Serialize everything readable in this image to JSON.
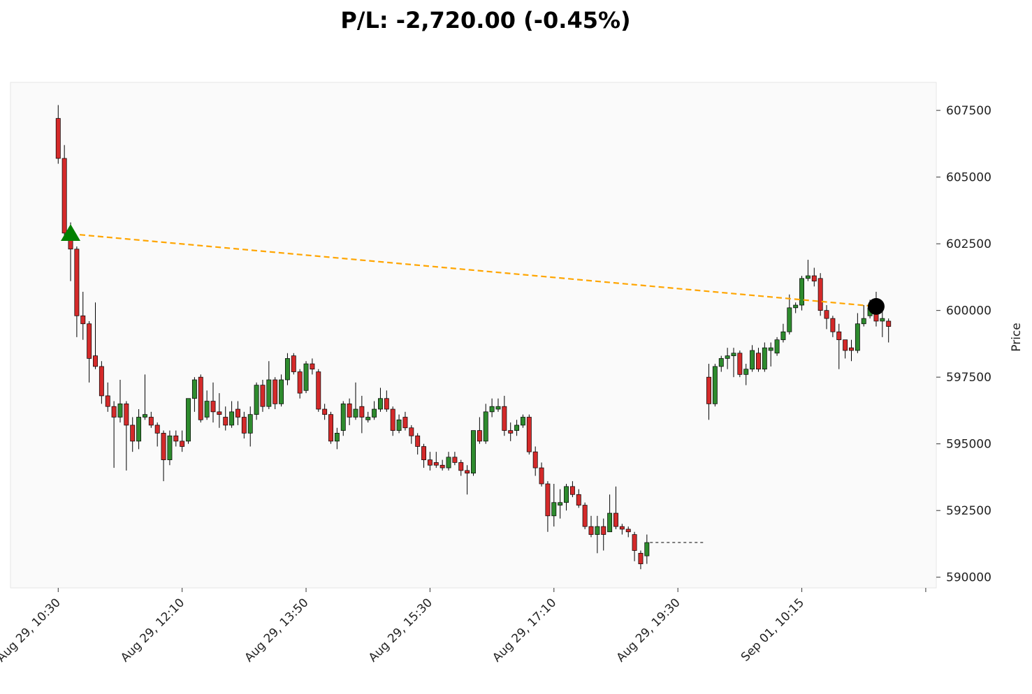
{
  "chart_data": {
    "type": "candlestick",
    "title": "P/L: -2,720.00 (-0.45%)",
    "ylabel": "Price",
    "ylim": [
      589600,
      608550
    ],
    "yticks": [
      590000,
      592500,
      595000,
      597500,
      600000,
      602500,
      605000,
      607500
    ],
    "xlim": [
      -7.7,
      141.7
    ],
    "xticks": [
      {
        "value": 0,
        "label": "Aug 29, 10:30"
      },
      {
        "value": 20,
        "label": "Aug 29, 12:10"
      },
      {
        "value": 40,
        "label": "Aug 29, 13:50"
      },
      {
        "value": 60,
        "label": "Aug 29, 15:30"
      },
      {
        "value": 80,
        "label": "Aug 29, 17:10"
      },
      {
        "value": 100,
        "label": "Aug 29, 19:30"
      },
      {
        "value": 120,
        "label": "Sep 01, 10:15"
      },
      {
        "value": 140,
        "label": null
      }
    ],
    "up_color": "#2e8b2e",
    "down_color": "#d42a2a",
    "wick_color": "#000000",
    "open": [
      607200,
      605700,
      602900,
      602300,
      599800,
      599500,
      598300,
      597900,
      596800,
      596400,
      596000,
      596500,
      595700,
      595100,
      596000,
      596000,
      595700,
      595400,
      594400,
      595300,
      595100,
      595100,
      596700,
      597500,
      596000,
      596600,
      596200,
      596000,
      595700,
      596300,
      596000,
      595400,
      596100,
      597200,
      596400,
      597400,
      596500,
      597400,
      598300,
      597700,
      597000,
      598000,
      597700,
      596300,
      596100,
      595100,
      595500,
      596500,
      596000,
      596400,
      595900,
      596000,
      596300,
      596700,
      596300,
      595500,
      596000,
      595600,
      595300,
      594900,
      594400,
      594300,
      594200,
      594100,
      594500,
      594300,
      594000,
      593900,
      595500,
      595100,
      596200,
      596300,
      596400,
      595500,
      595500,
      595700,
      596000,
      594700,
      594100,
      593500,
      592300,
      592700,
      592800,
      593400,
      593100,
      592700,
      591900,
      591600,
      591900,
      591700,
      592400,
      591900,
      591800,
      591600,
      590900,
      590800,
      null,
      null,
      null,
      null,
      null,
      null,
      null,
      null,
      null,
      597500,
      596500,
      597900,
      598200,
      598300,
      598400,
      597600,
      597800,
      598400,
      597800,
      598500,
      598400,
      598900,
      599200,
      600100,
      600200,
      601200,
      601300,
      601200,
      600000,
      599700,
      599200,
      598900,
      598600,
      598500,
      599500,
      599800,
      600100,
      599600,
      599600
    ],
    "high": [
      607700,
      606200,
      603300,
      602400,
      600700,
      599600,
      600300,
      598100,
      597300,
      596600,
      597400,
      596600,
      596000,
      596300,
      597600,
      596200,
      595800,
      595500,
      595500,
      595500,
      595500,
      596700,
      597500,
      597600,
      597000,
      597300,
      596900,
      596400,
      596600,
      596600,
      596200,
      596400,
      597300,
      597400,
      598100,
      597500,
      597600,
      598400,
      598400,
      597800,
      598100,
      598200,
      597800,
      596500,
      596200,
      595600,
      596600,
      596700,
      597300,
      596800,
      596200,
      596600,
      597100,
      597000,
      596400,
      596100,
      596200,
      595700,
      595400,
      595000,
      594700,
      594700,
      594400,
      594700,
      594700,
      594400,
      594200,
      595500,
      596000,
      596500,
      596700,
      596700,
      596800,
      595800,
      595900,
      596100,
      596100,
      594900,
      594300,
      593600,
      593500,
      593300,
      593500,
      593600,
      593300,
      592800,
      592300,
      592300,
      592200,
      593100,
      593400,
      592000,
      591900,
      591700,
      591000,
      591600,
      null,
      null,
      null,
      null,
      null,
      null,
      null,
      null,
      null,
      598000,
      598000,
      598300,
      598600,
      598600,
      598500,
      598000,
      598700,
      598600,
      598800,
      598800,
      599000,
      599500,
      600600,
      600300,
      601300,
      601900,
      601600,
      601400,
      600200,
      599800,
      599500,
      598900,
      598900,
      599900,
      600200,
      600400,
      600700,
      600100,
      599700
    ],
    "low": [
      605500,
      602700,
      601100,
      599000,
      598900,
      597300,
      597800,
      596500,
      596200,
      594100,
      595800,
      594000,
      594700,
      594800,
      595900,
      595600,
      594900,
      593600,
      594200,
      594900,
      594700,
      595000,
      596200,
      595800,
      595900,
      595800,
      595600,
      595500,
      595600,
      595700,
      595200,
      594900,
      595900,
      596200,
      596300,
      596300,
      596400,
      597200,
      597600,
      596700,
      596900,
      597600,
      596200,
      595900,
      595000,
      594800,
      595300,
      595700,
      595900,
      595400,
      595800,
      595900,
      596200,
      596200,
      595300,
      595400,
      595500,
      595000,
      594600,
      594100,
      594000,
      594100,
      594000,
      594000,
      594200,
      593800,
      593100,
      593800,
      595000,
      595000,
      596000,
      596200,
      595300,
      595100,
      595300,
      595600,
      594600,
      593800,
      593400,
      591700,
      591900,
      592200,
      592500,
      593000,
      592600,
      591800,
      591500,
      590900,
      591000,
      591700,
      591800,
      591600,
      591500,
      590600,
      590300,
      590500,
      null,
      null,
      null,
      null,
      null,
      null,
      null,
      null,
      null,
      595900,
      596400,
      597700,
      597800,
      597500,
      597500,
      597200,
      597700,
      597700,
      597700,
      597900,
      598300,
      598800,
      599100,
      599900,
      600000,
      601100,
      600900,
      599800,
      599300,
      599000,
      597800,
      598200,
      598100,
      598400,
      599400,
      599700,
      599400,
      599000,
      598800
    ],
    "close": [
      605700,
      602900,
      602300,
      599800,
      599500,
      598200,
      597900,
      596800,
      596400,
      596000,
      596500,
      595700,
      595100,
      596000,
      596100,
      595700,
      595400,
      594400,
      595300,
      595100,
      594900,
      596700,
      597400,
      595900,
      596600,
      596200,
      596100,
      595700,
      596200,
      596000,
      595400,
      596100,
      597200,
      596400,
      597400,
      596500,
      597400,
      598200,
      597700,
      596900,
      598000,
      597800,
      596300,
      596100,
      595100,
      595400,
      596500,
      596000,
      596300,
      596000,
      596000,
      596300,
      596700,
      596300,
      595500,
      595900,
      595600,
      595300,
      594900,
      594400,
      594200,
      594200,
      594100,
      594500,
      594300,
      594000,
      593900,
      595500,
      595100,
      596200,
      596400,
      596400,
      595500,
      595400,
      595700,
      596000,
      594700,
      594100,
      593500,
      592300,
      592800,
      592800,
      593400,
      593100,
      592700,
      591900,
      591600,
      591900,
      591600,
      592400,
      591900,
      591800,
      591700,
      591000,
      590500,
      591300,
      null,
      null,
      null,
      null,
      null,
      null,
      null,
      null,
      null,
      596500,
      597900,
      598200,
      598300,
      598400,
      597600,
      597800,
      598500,
      597800,
      598600,
      598600,
      598900,
      599200,
      600100,
      600200,
      601200,
      601300,
      601100,
      600000,
      599700,
      599200,
      598900,
      598500,
      598500,
      599500,
      599700,
      600100,
      599600,
      599700,
      599400
    ],
    "gap_line": {
      "y": 591300,
      "x": [
        95.5,
        104.2
      ],
      "color": "#000000"
    },
    "entry": {
      "x": 2,
      "y": 602870,
      "color": "#008000"
    },
    "exit": {
      "x": 132,
      "y": 600150,
      "color": "#000000"
    },
    "trade_line_color": "#ffa500"
  }
}
